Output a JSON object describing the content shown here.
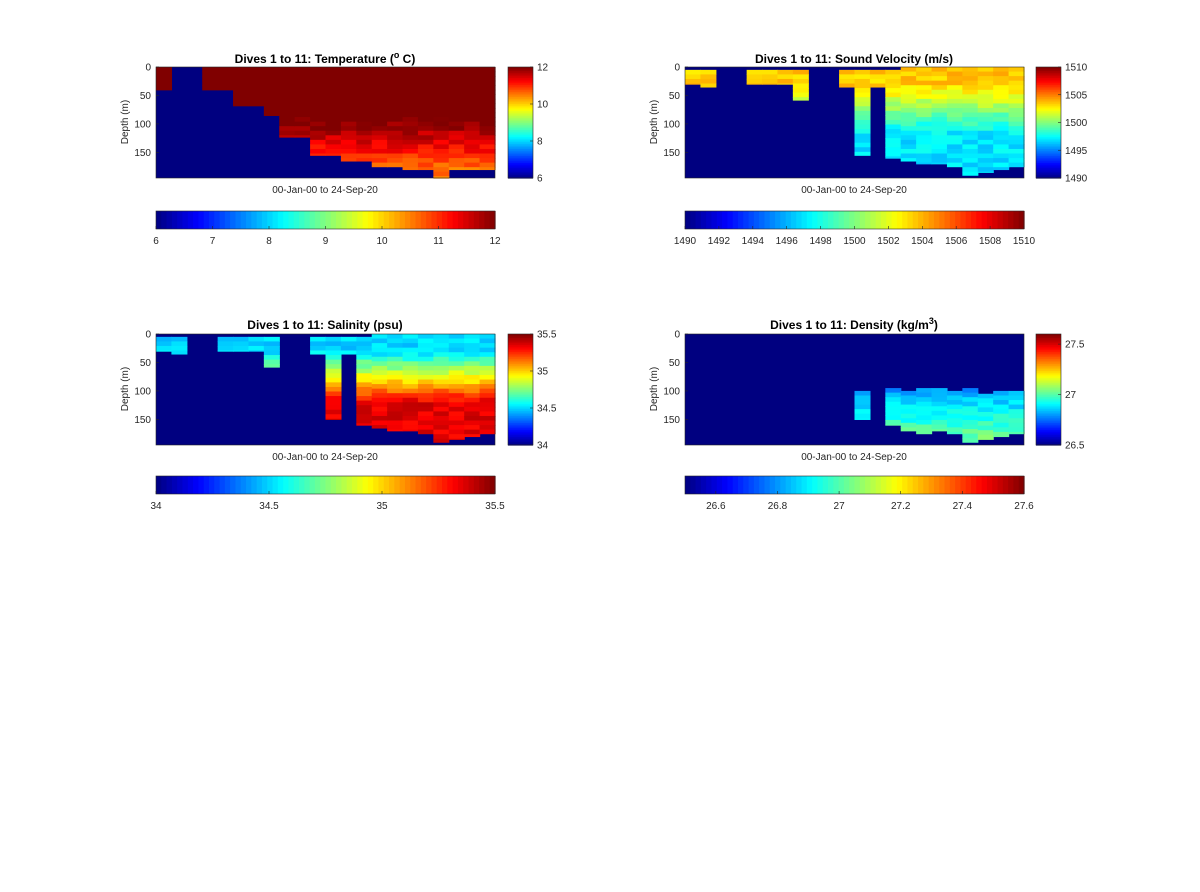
{
  "chart_data": [
    {
      "type": "heatmap",
      "title": "Dives 1 to 11: Temperature (",
      "title_sup": "o",
      "title_end": " C)",
      "xlabel": "00-Jan-00 to 24-Sep-20",
      "ylabel": "Depth (m)",
      "yticks": [
        "0",
        "50",
        "100",
        "150"
      ],
      "ytick_values": [
        0,
        50,
        100,
        150
      ],
      "ylim": [
        0,
        195
      ],
      "columns": 22,
      "clim": [
        6,
        12
      ],
      "side_colorbar_ticks": [
        "6",
        "8",
        "10",
        "12"
      ],
      "side_colorbar_values": [
        6,
        8,
        10,
        12
      ],
      "bottom_colorbar_ticks": [
        "6",
        "7",
        "8",
        "9",
        "10",
        "11",
        "12"
      ],
      "bottom_colorbar_values": [
        6,
        7,
        8,
        9,
        10,
        11,
        12
      ],
      "data_depths": [
        [
          0,
          40
        ],
        [
          0,
          0
        ],
        [
          0,
          0
        ],
        [
          0,
          40
        ],
        [
          0,
          40
        ],
        [
          0,
          68
        ],
        [
          0,
          68
        ],
        [
          0,
          85
        ],
        [
          0,
          123
        ],
        [
          0,
          123
        ],
        [
          0,
          155
        ],
        [
          0,
          155
        ],
        [
          0,
          165
        ],
        [
          0,
          165
        ],
        [
          0,
          175
        ],
        [
          0,
          175
        ],
        [
          0,
          180
        ],
        [
          0,
          180
        ],
        [
          0,
          195
        ],
        [
          0,
          180
        ],
        [
          0,
          180
        ],
        [
          0,
          180
        ]
      ],
      "profile": {
        "surface_value": 12.3,
        "deep_value": 10.6,
        "transition_top": 80,
        "transition_bottom": 180
      }
    },
    {
      "type": "heatmap",
      "title": "Dives 1 to 11: Sound Velocity (m/s)",
      "xlabel": "00-Jan-00 to 24-Sep-20",
      "ylabel": "Depth (m)",
      "yticks": [
        "0",
        "50",
        "100",
        "150"
      ],
      "ytick_values": [
        0,
        50,
        100,
        150
      ],
      "ylim": [
        0,
        195
      ],
      "columns": 22,
      "clim": [
        1490,
        1510
      ],
      "side_colorbar_ticks": [
        "1490",
        "1495",
        "1500",
        "1505",
        "1510"
      ],
      "side_colorbar_values": [
        1490,
        1495,
        1500,
        1505,
        1510
      ],
      "bottom_colorbar_ticks": [
        "1490",
        "1492",
        "1494",
        "1496",
        "1498",
        "1500",
        "1502",
        "1504",
        "1506",
        "1508",
        "1510"
      ],
      "bottom_colorbar_values": [
        1490,
        1492,
        1494,
        1496,
        1498,
        1500,
        1502,
        1504,
        1506,
        1508,
        1510
      ],
      "data_depths": [
        [
          5,
          30
        ],
        [
          5,
          35
        ],
        [
          0,
          0
        ],
        [
          0,
          0
        ],
        [
          5,
          30
        ],
        [
          5,
          30
        ],
        [
          5,
          30
        ],
        [
          5,
          58
        ],
        [
          0,
          0
        ],
        [
          0,
          0
        ],
        [
          5,
          35
        ],
        [
          5,
          155
        ],
        [
          5,
          35
        ],
        [
          5,
          160
        ],
        [
          0,
          165
        ],
        [
          0,
          170
        ],
        [
          0,
          170
        ],
        [
          0,
          175
        ],
        [
          0,
          190
        ],
        [
          0,
          185
        ],
        [
          0,
          180
        ],
        [
          0,
          175
        ]
      ],
      "profile": {
        "surface_value": 1503.5,
        "deep_value": 1497,
        "transition_top": 30,
        "transition_bottom": 120
      }
    },
    {
      "type": "heatmap",
      "title": "Dives 1 to 11: Salinity (psu)",
      "xlabel": "00-Jan-00 to 24-Sep-20",
      "ylabel": "Depth (m)",
      "yticks": [
        "0",
        "50",
        "100",
        "150"
      ],
      "ytick_values": [
        0,
        50,
        100,
        150
      ],
      "ylim": [
        0,
        195
      ],
      "columns": 22,
      "clim": [
        34,
        35.5
      ],
      "side_colorbar_ticks": [
        "34",
        "34.5",
        "35",
        "35.5"
      ],
      "side_colorbar_values": [
        34,
        34.5,
        35,
        35.5
      ],
      "bottom_colorbar_ticks": [
        "34",
        "34.5",
        "35",
        "35.5"
      ],
      "bottom_colorbar_values": [
        34,
        34.5,
        35,
        35.5
      ],
      "data_depths": [
        [
          5,
          30
        ],
        [
          5,
          35
        ],
        [
          0,
          0
        ],
        [
          0,
          0
        ],
        [
          5,
          30
        ],
        [
          5,
          30
        ],
        [
          5,
          30
        ],
        [
          5,
          58
        ],
        [
          0,
          0
        ],
        [
          0,
          0
        ],
        [
          5,
          35
        ],
        [
          5,
          150
        ],
        [
          5,
          35
        ],
        [
          5,
          160
        ],
        [
          0,
          165
        ],
        [
          0,
          170
        ],
        [
          0,
          170
        ],
        [
          0,
          175
        ],
        [
          0,
          190
        ],
        [
          0,
          185
        ],
        [
          0,
          180
        ],
        [
          0,
          175
        ]
      ],
      "profile": {
        "surface_value": 34.5,
        "deep_value": 35.35,
        "transition_top": 30,
        "transition_bottom": 120
      }
    },
    {
      "type": "heatmap",
      "title": "Dives 1 to 11: Density (kg/m",
      "title_sup": "3",
      "title_end": ")",
      "xlabel": "00-Jan-00 to 24-Sep-20",
      "ylabel": "Depth (m)",
      "yticks": [
        "0",
        "50",
        "100",
        "150"
      ],
      "ytick_values": [
        0,
        50,
        100,
        150
      ],
      "ylim": [
        0,
        195
      ],
      "columns": 22,
      "clim": [
        26.5,
        27.6
      ],
      "side_colorbar_ticks": [
        "26.5",
        "27",
        "27.5"
      ],
      "side_colorbar_values": [
        26.5,
        27,
        27.5
      ],
      "bottom_colorbar_ticks": [
        "26.6",
        "26.8",
        "27",
        "27.2",
        "27.4",
        "27.6"
      ],
      "bottom_colorbar_values": [
        26.6,
        26.8,
        27,
        27.2,
        27.4,
        27.6
      ],
      "data_depths": [
        [
          0,
          0
        ],
        [
          0,
          0
        ],
        [
          0,
          0
        ],
        [
          0,
          0
        ],
        [
          0,
          0
        ],
        [
          0,
          0
        ],
        [
          0,
          0
        ],
        [
          0,
          0
        ],
        [
          0,
          0
        ],
        [
          0,
          0
        ],
        [
          0,
          0
        ],
        [
          100,
          150
        ],
        [
          0,
          0
        ],
        [
          95,
          160
        ],
        [
          100,
          170
        ],
        [
          95,
          175
        ],
        [
          95,
          170
        ],
        [
          100,
          175
        ],
        [
          95,
          190
        ],
        [
          105,
          185
        ],
        [
          100,
          180
        ],
        [
          100,
          175
        ]
      ],
      "profile": {
        "surface_value": 26.8,
        "deep_value": 27.05,
        "transition_top": 95,
        "transition_bottom": 190
      }
    }
  ]
}
